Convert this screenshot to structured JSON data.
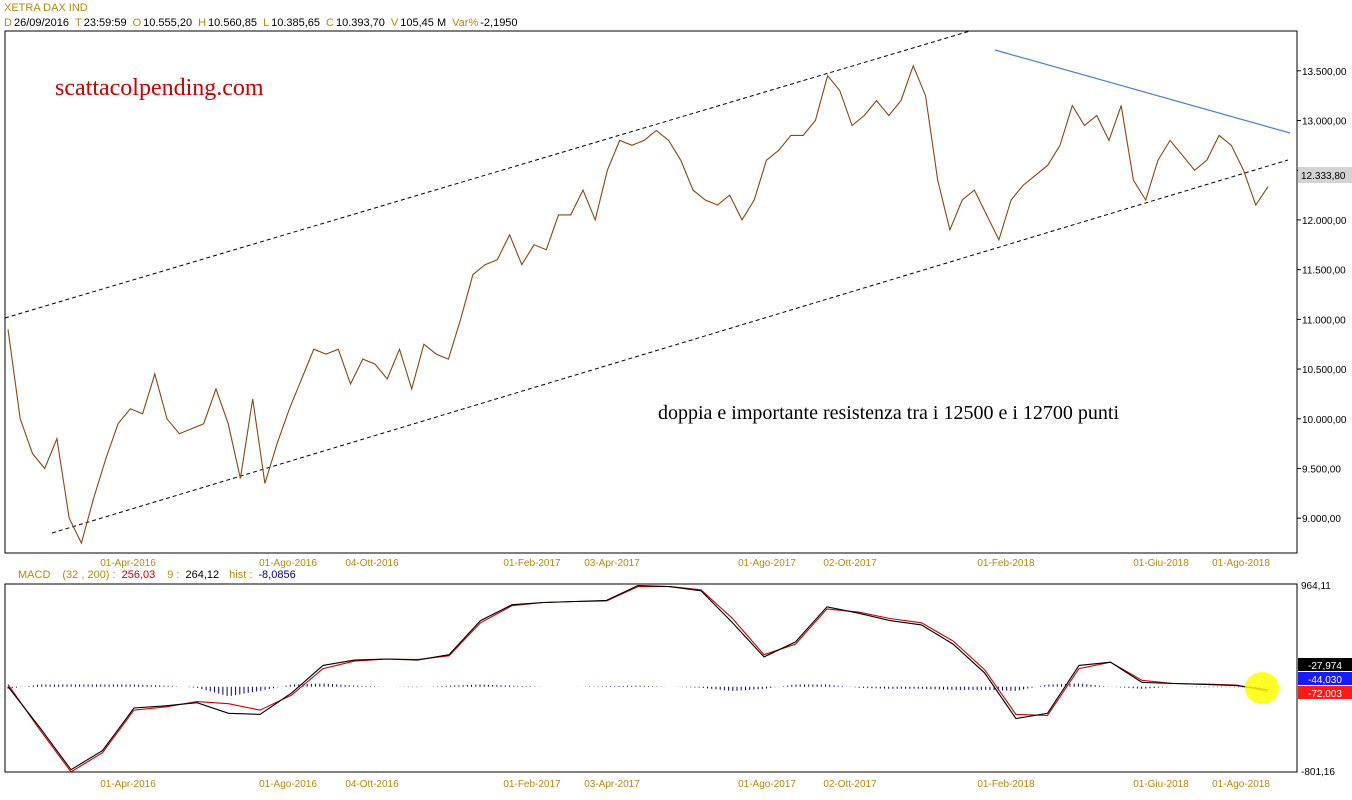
{
  "header": {
    "title": "XETRA DAX IND",
    "d_tag": "D",
    "date": "26/09/2016",
    "t_tag": "T",
    "time": "23:59:59",
    "o_tag": "O",
    "open": "10.555,20",
    "h_tag": "H",
    "high": "10.560,85",
    "l_tag": "L",
    "low": "10.385,65",
    "c_tag": "C",
    "close": "10.393,70",
    "v_tag": "V",
    "volume": "105,45 M",
    "var_tag": "Var%",
    "var": "-2,1950"
  },
  "annotations": {
    "watermark": "scattacolpending.com",
    "comment": "doppia e importante resistenza tra i 12500 e i 12700 punti",
    "last_price": "12.333,80"
  },
  "macd_header": {
    "name": "MACD",
    "params": "(32 , 200) :",
    "macd_value": "256,03",
    "signal_period": "9 :",
    "signal_value": "264,12",
    "hist_label": "hist :",
    "hist_value": "-8,0856"
  },
  "macd_labels": {
    "max": "964,11",
    "min": "-801,16",
    "v1": "-27,974",
    "v2": "-44,030",
    "v3": "-72,003"
  },
  "colors": {
    "price": "#8b4513",
    "resistance": "#4a7fd6",
    "macd": "#000000",
    "signal": "#cc0000",
    "hist": "#000080",
    "axis_text": "#b8860b",
    "watermark": "#cc0000",
    "highlight": "#ffff00"
  },
  "chart_data": [
    {
      "type": "line",
      "y_ticks": [
        "13.500,00",
        "13.000,00",
        "12.500,00",
        "12.000,00",
        "11.500,00",
        "11.000,00",
        "10.500,00",
        "10.000,00",
        "9.500,00",
        "9.000,00"
      ],
      "ylim": [
        8650,
        13900
      ],
      "x_ticks": [
        "01-Apr-2016",
        "01-Ago-2016",
        "04-Ott-2016",
        "01-Feb-2017",
        "03-Apr-2017",
        "01-Ago-2017",
        "02-Ott-2017",
        "01-Feb-2018",
        "01-Giu-2018",
        "01-Ago-2018"
      ],
      "series": [
        {
          "values": [
            10900,
            10000,
            9650,
            9500,
            9800,
            9000,
            8750,
            9200,
            9600,
            9950,
            10100,
            10050,
            10450,
            10000,
            9850,
            9900,
            9950,
            10300,
            9950,
            9400,
            10200,
            9350,
            9750,
            10100,
            10400,
            10700,
            10650,
            10700,
            10350,
            10600,
            10550,
            10400,
            10700,
            10300,
            10750,
            10650,
            10600,
            11000,
            11450,
            11550,
            11600,
            11850,
            11550,
            11750,
            11700,
            12050,
            12050,
            12300,
            12000,
            12500,
            12800,
            12750,
            12800,
            12900,
            12800,
            12600,
            12300,
            12200,
            12150,
            12250,
            12000,
            12200,
            12600,
            12700,
            12850,
            12850,
            13000,
            13450,
            13300,
            12950,
            13050,
            13200,
            13050,
            13200,
            13550,
            13250,
            12400,
            11900,
            12200,
            12300,
            12050,
            11800,
            12200,
            12350,
            12450,
            12550,
            12750,
            13150,
            12950,
            13050,
            12800,
            13150,
            12400,
            12200,
            12600,
            12800,
            12650,
            12500,
            12600,
            12850,
            12750,
            12500,
            12150,
            12333.8
          ]
        }
      ]
    },
    {
      "type": "line",
      "name": "MACD",
      "ylim": [
        -801.16,
        964.11
      ],
      "series": [
        {
          "name": "MACD",
          "values": [
            0,
            -380,
            -780,
            -600,
            -200,
            -180,
            -150,
            -250,
            -260,
            -60,
            200,
            250,
            260,
            250,
            300,
            620,
            770,
            790,
            800,
            810,
            950,
            940,
            900,
            600,
            280,
            420,
            750,
            690,
            620,
            580,
            400,
            130,
            -300,
            -250,
            200,
            230,
            40,
            30,
            20,
            10,
            -27.974
          ]
        },
        {
          "name": "Signal",
          "values": [
            20,
            -400,
            -800,
            -620,
            -220,
            -190,
            -140,
            -160,
            -220,
            -80,
            170,
            240,
            260,
            255,
            290,
            600,
            760,
            790,
            800,
            805,
            940,
            940,
            910,
            640,
            300,
            400,
            730,
            700,
            640,
            600,
            430,
            160,
            -260,
            -270,
            170,
            230,
            60,
            30,
            25,
            15,
            -44.03
          ]
        },
        {
          "name": "hist",
          "values": [
            -20,
            20,
            20,
            20,
            20,
            10,
            -10,
            -90,
            -40,
            20,
            30,
            10,
            0,
            -5,
            10,
            20,
            10,
            0,
            0,
            5,
            10,
            0,
            -10,
            -40,
            -20,
            20,
            20,
            -10,
            -20,
            -20,
            -30,
            -30,
            -40,
            20,
            30,
            0,
            -20,
            0,
            -5,
            -5,
            -8.0856
          ]
        }
      ]
    }
  ]
}
